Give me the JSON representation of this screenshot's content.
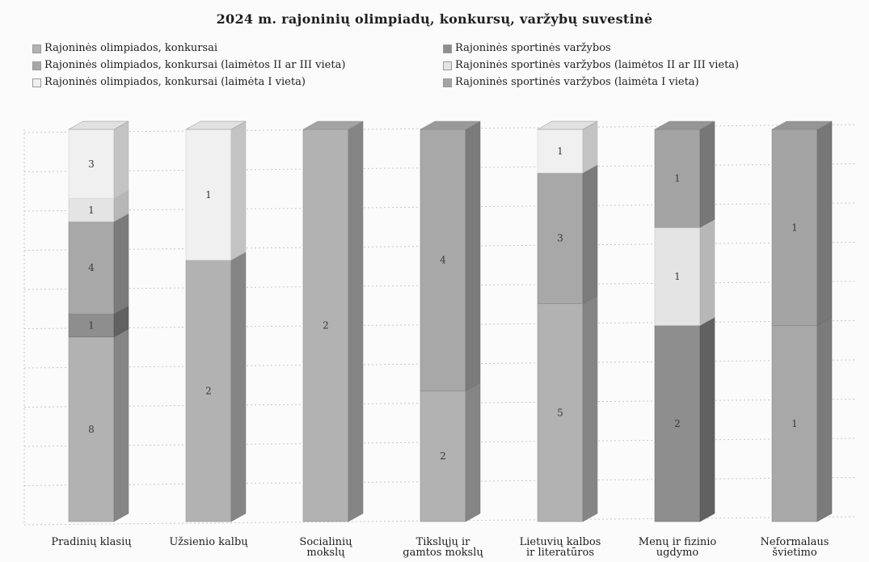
{
  "chart_data": {
    "type": "bar",
    "stacked": true,
    "title": "2024 m.  rajoninių  olimpiadų,  konkursų,  varžybų  suvestinė",
    "categories": [
      [
        "Pradinių klasių"
      ],
      [
        "Užsienio kalbų"
      ],
      [
        "Socialinių",
        "mokslų"
      ],
      [
        "Tikslųjų ir",
        "gamtos mokslų"
      ],
      [
        "Lietuvių kalbos",
        "ir literatūros"
      ],
      [
        "Menų ir fizinio",
        "ugdymo"
      ],
      [
        "Neformalaus",
        "švietimo"
      ]
    ],
    "series": [
      {
        "name": "Rajoninės olimpiados,  konkursai",
        "color": "#b2b2b2",
        "values": [
          8,
          2,
          2,
          2,
          5,
          0,
          0
        ]
      },
      {
        "name": "Rajoninės sportinės varžybos",
        "color": "#8e8e8e",
        "values": [
          1,
          0,
          0,
          0,
          0,
          2,
          0
        ]
      },
      {
        "name": "Rajoninės olimpiados, konkursai (laimėtos II ar III vieta)",
        "color": "#a8a8a8",
        "values": [
          4,
          0,
          0,
          4,
          3,
          0,
          1
        ]
      },
      {
        "name": "Rajoninės sportinės varžybos (laimėtos II ar III vieta)",
        "color": "#e4e4e4",
        "values": [
          1,
          0,
          0,
          0,
          0,
          1,
          0
        ]
      },
      {
        "name": "Rajoninės olimpiados,  konkursai (laimėta I vieta)",
        "color": "#f0f0f0",
        "values": [
          3,
          1,
          0,
          0,
          1,
          0,
          0
        ]
      },
      {
        "name": "Rajoninės sportinės varžybos (laimėta I vieta)",
        "color": "#a4a4a4",
        "values": [
          0,
          0,
          0,
          0,
          0,
          1,
          1
        ]
      }
    ],
    "normalized": true,
    "grid": true,
    "legend_position": "top"
  }
}
